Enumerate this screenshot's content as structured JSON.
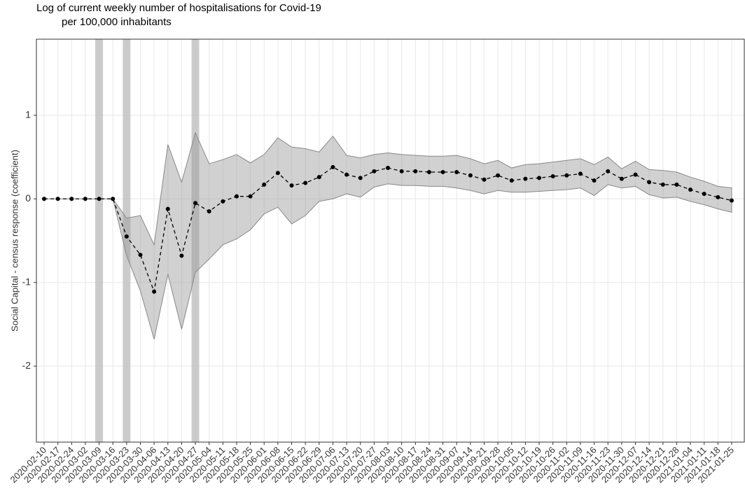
{
  "chart_data": {
    "type": "line",
    "title": [
      "Log of current weekly number of hospitalisations for Covid-19",
      "per 100,000 inhabitants"
    ],
    "y_label": "Social Capital - census response (coefficient)",
    "categories": [
      "2020-02-10",
      "2020-02-17",
      "2020-02-24",
      "2020-03-02",
      "2020-03-09",
      "2020-03-16",
      "2020-03-23",
      "2020-03-30",
      "2020-04-06",
      "2020-04-13",
      "2020-04-20",
      "2020-04-27",
      "2020-05-04",
      "2020-05-11",
      "2020-05-18",
      "2020-05-25",
      "2020-06-01",
      "2020-06-08",
      "2020-06-15",
      "2020-06-22",
      "2020-06-29",
      "2020-07-06",
      "2020-07-13",
      "2020-07-20",
      "2020-07-27",
      "2020-08-03",
      "2020-08-10",
      "2020-08-17",
      "2020-08-24",
      "2020-08-31",
      "2020-09-07",
      "2020-09-14",
      "2020-09-21",
      "2020-09-28",
      "2020-10-05",
      "2020-10-12",
      "2020-10-19",
      "2020-10-26",
      "2020-11-02",
      "2020-11-09",
      "2020-11-16",
      "2020-11-23",
      "2020-11-30",
      "2020-12-07",
      "2020-12-14",
      "2020-12-21",
      "2020-12-28",
      "2021-01-04",
      "2021-01-11",
      "2021-01-18",
      "2021-01-25"
    ],
    "values": [
      0,
      0,
      0,
      0,
      0,
      0,
      -0.45,
      -0.67,
      -1.11,
      -0.12,
      -0.68,
      -0.05,
      -0.15,
      -0.03,
      0.03,
      0.03,
      0.17,
      0.31,
      0.16,
      0.19,
      0.26,
      0.38,
      0.29,
      0.25,
      0.33,
      0.37,
      0.33,
      0.33,
      0.32,
      0.32,
      0.32,
      0.28,
      0.23,
      0.28,
      0.22,
      0.24,
      0.25,
      0.27,
      0.28,
      0.3,
      0.22,
      0.33,
      0.24,
      0.29,
      0.2,
      0.17,
      0.17,
      0.11,
      0.06,
      0.02,
      -0.02
    ],
    "ci_upper": [
      0,
      0,
      0,
      0,
      0,
      0,
      -0.23,
      -0.2,
      -0.55,
      0.65,
      0.2,
      0.79,
      0.42,
      0.47,
      0.53,
      0.43,
      0.53,
      0.73,
      0.62,
      0.6,
      0.56,
      0.75,
      0.52,
      0.49,
      0.53,
      0.55,
      0.53,
      0.52,
      0.51,
      0.51,
      0.52,
      0.48,
      0.42,
      0.46,
      0.37,
      0.41,
      0.42,
      0.44,
      0.46,
      0.48,
      0.41,
      0.5,
      0.36,
      0.45,
      0.35,
      0.34,
      0.32,
      0.26,
      0.21,
      0.15,
      0.13
    ],
    "ci_lower": [
      0,
      0,
      0,
      0,
      0,
      0,
      -0.68,
      -1.1,
      -1.68,
      -0.9,
      -1.56,
      -0.88,
      -0.72,
      -0.55,
      -0.48,
      -0.37,
      -0.18,
      -0.1,
      -0.3,
      -0.2,
      -0.03,
      0,
      0.06,
      0.02,
      0.14,
      0.18,
      0.16,
      0.16,
      0.15,
      0.15,
      0.13,
      0.1,
      0.06,
      0.1,
      0.08,
      0.08,
      0.09,
      0.1,
      0.11,
      0.13,
      0.04,
      0.17,
      0.13,
      0.15,
      0.05,
      0.01,
      0.02,
      -0.03,
      -0.07,
      -0.12,
      -0.16
    ],
    "highlights": [
      "2020-03-09",
      "2020-03-23",
      "2020-04-27"
    ],
    "color": "#000000",
    "band_color": "#999999",
    "ylim": [
      -2.91,
      1.91
    ],
    "yticks": [
      -2,
      -1,
      0,
      1
    ],
    "grid": true
  }
}
